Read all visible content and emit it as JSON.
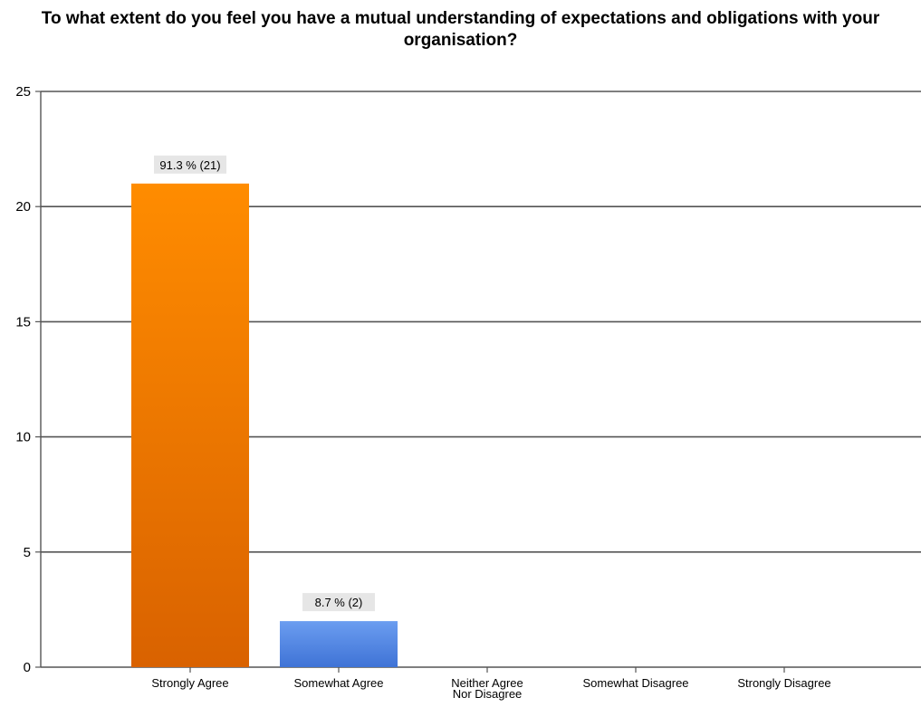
{
  "chart_data": {
    "type": "bar",
    "title": "To what extent do you feel you have a mutual understanding of expectations and obligations with your organisation?",
    "categories": [
      "Strongly Agree",
      "Somewhat Agree",
      "Neither Agree Nor Disagree",
      "Somewhat Disagree",
      "Strongly Disagree"
    ],
    "category_lines": [
      [
        "Strongly Agree"
      ],
      [
        "Somewhat Agree"
      ],
      [
        "Neither Agree",
        "Nor Disagree"
      ],
      [
        "Somewhat Disagree"
      ],
      [
        "Strongly Disagree"
      ]
    ],
    "values": [
      21,
      2,
      0,
      0,
      0
    ],
    "data_labels": [
      "91.3 % (21)",
      "8.7 % (2)",
      "",
      "",
      ""
    ],
    "bar_colors": [
      [
        "#ff8c00",
        "#d96200"
      ],
      [
        "#6b9df0",
        "#3f73d6"
      ],
      [
        "#6b9df0",
        "#3f73d6"
      ],
      [
        "#6b9df0",
        "#3f73d6"
      ],
      [
        "#6b9df0",
        "#3f73d6"
      ]
    ],
    "ylim": [
      0,
      25
    ],
    "yticks": [
      0,
      5,
      10,
      15,
      20,
      25
    ],
    "xlabel": "",
    "ylabel": "",
    "grid": true,
    "legend": "none"
  }
}
